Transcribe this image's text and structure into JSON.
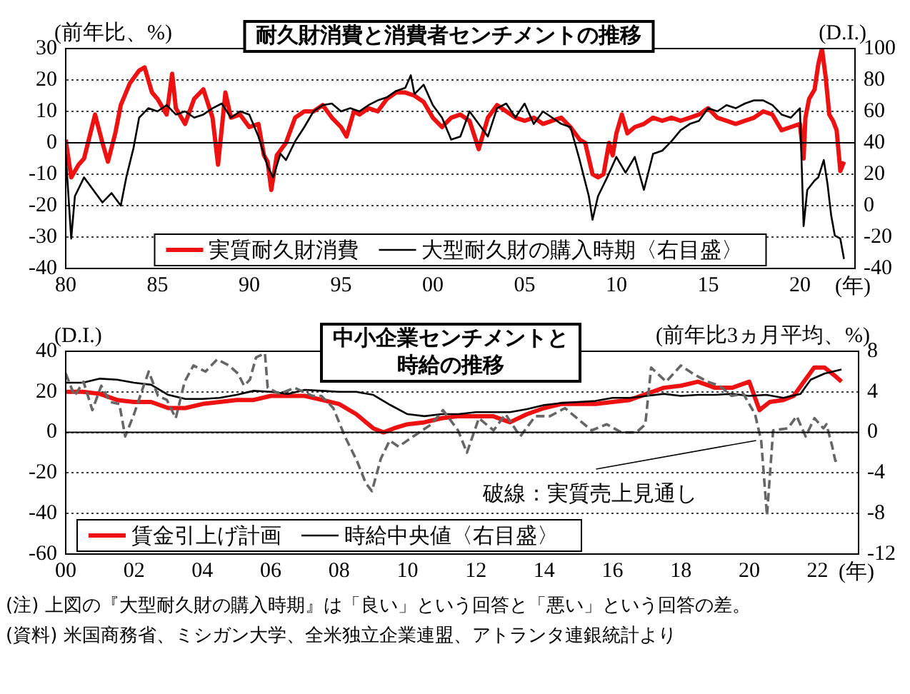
{
  "chart_data": [
    {
      "type": "line",
      "title": "耐久財消費と消費者センチメントの推移",
      "xlabel": "(年)",
      "ylabel": "(前年比、%)",
      "y2label": "(D.I.)",
      "xlim": [
        1980,
        2023
      ],
      "xticks": [
        {
          "value": 1980,
          "label": "80"
        },
        {
          "value": 1985,
          "label": "85"
        },
        {
          "value": 1990,
          "label": "90"
        },
        {
          "value": 1995,
          "label": "95"
        },
        {
          "value": 2000,
          "label": "00"
        },
        {
          "value": 2005,
          "label": "05"
        },
        {
          "value": 2010,
          "label": "10"
        },
        {
          "value": 2015,
          "label": "15"
        },
        {
          "value": 2020,
          "label": "20"
        }
      ],
      "ylim": [
        -40,
        30
      ],
      "yticks": [
        -40,
        -30,
        -20,
        -10,
        0,
        10,
        20,
        30
      ],
      "y2lim": [
        -40,
        100
      ],
      "y2ticks": [
        -40,
        -20,
        0,
        20,
        40,
        60,
        80,
        100
      ],
      "grid": "y",
      "legend": "bottom",
      "marker": "none",
      "series": [
        {
          "name": "実質耐久財消費",
          "color": "#ee1111",
          "x": [
            1980,
            1980.3,
            1980.7,
            1981,
            1981.3,
            1981.6,
            1982,
            1982.3,
            1982.7,
            1983,
            1983.5,
            1984,
            1984.3,
            1984.7,
            1985,
            1985.5,
            1985.8,
            1986,
            1986.5,
            1987,
            1987.5,
            1988,
            1988.3,
            1988.7,
            1989,
            1989.5,
            1990,
            1990.5,
            1990.8,
            1991,
            1991.2,
            1991.5,
            1992,
            1992.5,
            1993,
            1993.5,
            1994,
            1994.5,
            1995,
            1995.3,
            1995.7,
            1996,
            1996.5,
            1997,
            1997.5,
            1998,
            1998.5,
            1999,
            1999.5,
            2000,
            2000.5,
            2001,
            2001.5,
            2002,
            2002.5,
            2003,
            2003.5,
            2004,
            2004.5,
            2005,
            2005.5,
            2006,
            2006.5,
            2007,
            2007.5,
            2008,
            2008.3,
            2008.7,
            2009,
            2009.3,
            2009.6,
            2009.8,
            2010,
            2010.3,
            2010.6,
            2011,
            2011.5,
            2012,
            2012.5,
            2013,
            2013.5,
            2014,
            2014.5,
            2015,
            2015.5,
            2016,
            2016.5,
            2017,
            2017.5,
            2018,
            2018.5,
            2019,
            2019.5,
            2020,
            2020.2,
            2020.3,
            2020.5,
            2020.8,
            2021,
            2021.2,
            2021.4,
            2021.6,
            2021.8,
            2022,
            2022.2,
            2022.4
          ],
          "values": [
            1,
            -11,
            -7,
            -5,
            2,
            9,
            0,
            -6,
            3,
            12,
            19,
            23,
            24,
            16,
            14,
            9,
            22,
            11,
            6,
            14,
            17,
            8,
            -7,
            16,
            8,
            9,
            5,
            6,
            -4,
            -6,
            -15,
            -4,
            0,
            8,
            10,
            10,
            12,
            8,
            5,
            2,
            10,
            9,
            11,
            10,
            14,
            16,
            16,
            15,
            13,
            8,
            5,
            8,
            9,
            7,
            -2,
            8,
            12,
            10,
            8,
            7,
            8,
            6,
            7,
            8,
            5,
            1,
            0,
            -10,
            -11,
            -10,
            0,
            -4,
            3,
            9,
            3,
            5,
            6,
            8,
            7,
            8,
            7,
            8,
            9,
            11,
            8,
            7,
            6,
            7,
            8,
            10,
            9,
            4,
            5,
            6,
            -5,
            8,
            14,
            17,
            25,
            30,
            21,
            9,
            7,
            4,
            -9,
            -6
          ]
        },
        {
          "name": "大型耐久財の購入時期〈右目盛〉",
          "color": "#000000",
          "axis": "y2",
          "x": [
            1980,
            1980.3,
            1980.5,
            1981,
            1981.5,
            1982,
            1982.5,
            1983,
            1983.3,
            1983.7,
            1984,
            1984.5,
            1985,
            1985.5,
            1986,
            1986.5,
            1987,
            1987.5,
            1988,
            1988.5,
            1989,
            1989.5,
            1990,
            1990.5,
            1991,
            1991.3,
            1991.7,
            1992,
            1992.5,
            1993,
            1993.5,
            1994,
            1994.5,
            1995,
            1995.5,
            1996,
            1996.5,
            1997,
            1997.5,
            1998,
            1998.5,
            1998.8,
            1999,
            1999.5,
            2000,
            2000.5,
            2001,
            2001.5,
            2002,
            2002.5,
            2003,
            2003.5,
            2004,
            2004.5,
            2005,
            2005.5,
            2006,
            2006.5,
            2007,
            2007.5,
            2008,
            2008.5,
            2008.7,
            2009,
            2009.5,
            2010,
            2010.5,
            2011,
            2011.5,
            2012,
            2012.5,
            2013,
            2013.5,
            2014,
            2014.5,
            2015,
            2015.5,
            2016,
            2016.5,
            2017,
            2017.5,
            2018,
            2018.5,
            2019,
            2019.5,
            2020,
            2020.2,
            2020.4,
            2020.8,
            2021,
            2021.3,
            2021.5,
            2021.7,
            2021.9,
            2022.2,
            2022.4
          ],
          "values": [
            33,
            -21,
            6,
            18,
            10,
            2,
            8,
            0,
            18,
            37,
            56,
            62,
            60,
            64,
            58,
            60,
            56,
            58,
            62,
            65,
            56,
            60,
            58,
            44,
            25,
            18,
            33,
            29,
            41,
            50,
            60,
            64,
            65,
            60,
            62,
            60,
            64,
            67,
            69,
            73,
            75,
            83,
            71,
            77,
            64,
            56,
            42,
            44,
            60,
            52,
            44,
            62,
            65,
            56,
            65,
            52,
            60,
            56,
            52,
            50,
            29,
            6,
            -9,
            6,
            18,
            31,
            21,
            31,
            10,
            33,
            35,
            41,
            48,
            52,
            54,
            62,
            60,
            64,
            62,
            65,
            67,
            67,
            64,
            58,
            56,
            62,
            -13,
            10,
            16,
            18,
            29,
            14,
            -6,
            -19,
            -21,
            -34
          ]
        }
      ]
    },
    {
      "type": "line",
      "title": "中小企業センチメントと時給の推移",
      "xlabel": "(年)",
      "ylabel": "(D.I.)",
      "y2label": "(前年比3ヵ月平均、%)",
      "xlim": [
        2000,
        2023.2
      ],
      "xticks": [
        {
          "value": 2000,
          "label": "00"
        },
        {
          "value": 2002,
          "label": "02"
        },
        {
          "value": 2004,
          "label": "04"
        },
        {
          "value": 2006,
          "label": "06"
        },
        {
          "value": 2008,
          "label": "08"
        },
        {
          "value": 2010,
          "label": "10"
        },
        {
          "value": 2012,
          "label": "12"
        },
        {
          "value": 2014,
          "label": "14"
        },
        {
          "value": 2016,
          "label": "16"
        },
        {
          "value": 2018,
          "label": "18"
        },
        {
          "value": 2020,
          "label": "20"
        },
        {
          "value": 2022,
          "label": "22"
        }
      ],
      "ylim": [
        -60,
        40
      ],
      "yticks": [
        -60,
        -40,
        -20,
        0,
        20,
        40
      ],
      "y2lim": [
        -12,
        8
      ],
      "y2ticks": [
        -12,
        -8,
        -4,
        0,
        4,
        8
      ],
      "grid": "y",
      "legend": "bottom left",
      "marker": "none",
      "annotations": [
        {
          "text": "破線：実質売上見通し",
          "x": 2020.2,
          "y": -4
        },
        "(注) 上図の『大型耐久財の購入時期』は「良い」という回答と「悪い」という回答の差。",
        "(資料) 米国商務省、ミシガン大学、全米独立企業連盟、アトランタ連銀統計より"
      ],
      "series": [
        {
          "name": "賃金引上げ計画",
          "color": "#ee1111",
          "x": [
            2000,
            2000.5,
            2001,
            2001.5,
            2002,
            2002.5,
            2003,
            2003.5,
            2004,
            2004.5,
            2005,
            2005.5,
            2006,
            2006.5,
            2007,
            2007.5,
            2008,
            2008.5,
            2009,
            2009.3,
            2009.6,
            2010,
            2010.5,
            2011,
            2011.5,
            2012,
            2012.5,
            2013,
            2013.5,
            2014,
            2014.5,
            2015,
            2015.5,
            2016,
            2016.5,
            2017,
            2017.5,
            2018,
            2018.5,
            2019,
            2019.5,
            2020,
            2020.3,
            2020.6,
            2021,
            2021.3,
            2021.6,
            2021.9,
            2022.2,
            2022.5,
            2022.7
          ],
          "values": [
            20,
            20,
            19,
            16,
            15,
            15,
            12,
            12,
            14,
            15,
            16,
            16,
            18,
            18,
            18,
            16,
            14,
            9,
            2,
            0,
            2,
            4,
            5,
            7,
            8,
            8,
            8,
            5,
            9,
            12,
            14,
            14,
            14,
            15,
            16,
            19,
            22,
            23,
            25,
            22,
            22,
            25,
            11,
            15,
            16,
            18,
            25,
            32,
            32,
            28,
            25
          ]
        },
        {
          "name": "時給中央値〈右目盛〉",
          "color": "#000000",
          "axis": "y2",
          "x": [
            2000,
            2000.5,
            2001,
            2001.5,
            2002,
            2002.5,
            2003,
            2003.5,
            2004,
            2004.5,
            2005,
            2005.5,
            2006,
            2006.5,
            2007,
            2007.5,
            2008,
            2008.5,
            2009,
            2009.5,
            2010,
            2010.5,
            2011,
            2011.5,
            2012,
            2012.5,
            2013,
            2013.5,
            2014,
            2014.5,
            2015,
            2015.5,
            2016,
            2016.5,
            2017,
            2017.5,
            2018,
            2018.5,
            2019,
            2019.5,
            2020,
            2020.5,
            2021,
            2021.5,
            2021.8,
            2022.2,
            2022.7
          ],
          "values": [
            4.9,
            4.9,
            5.3,
            5.2,
            4.9,
            4.7,
            3.7,
            3.3,
            3.3,
            3.4,
            3.7,
            4.1,
            4.0,
            3.8,
            4.2,
            4.1,
            4.0,
            4.0,
            3.7,
            2.7,
            1.8,
            1.6,
            1.8,
            1.8,
            2.0,
            2.0,
            2.0,
            2.3,
            2.7,
            2.9,
            3.0,
            3.1,
            3.4,
            3.4,
            3.6,
            3.8,
            3.6,
            3.7,
            3.7,
            3.8,
            3.6,
            3.7,
            3.4,
            3.8,
            5.2,
            5.8,
            6.2
          ]
        },
        {
          "color": "#666666",
          "line_style": "dashed",
          "x": [
            2000,
            2000.26,
            2000.52,
            2000.78,
            2001.04,
            2001.3,
            2001.57,
            2001.74,
            2002,
            2002.26,
            2002.43,
            2002.7,
            2002.96,
            2003.22,
            2003.48,
            2003.74,
            2004.09,
            2004.43,
            2004.78,
            2005.04,
            2005.22,
            2005.39,
            2005.57,
            2005.83,
            2005.91,
            2006.26,
            2006.7,
            2007.22,
            2007.48,
            2007.83,
            2008.17,
            2008.52,
            2008.78,
            2008.96,
            2009.22,
            2009.48,
            2009.74,
            2010.17,
            2010.7,
            2011.04,
            2011.48,
            2011.74,
            2012.09,
            2012.52,
            2012.87,
            2013.3,
            2013.74,
            2014.17,
            2014.61,
            2014.96,
            2015.39,
            2015.83,
            2016.26,
            2016.7,
            2016.96,
            2017.13,
            2017.57,
            2018,
            2018.35,
            2018.78,
            2019.13,
            2019.48,
            2019.83,
            2020.17,
            2020.35,
            2020.52,
            2020.7,
            2021.13,
            2021.39,
            2021.65,
            2021.91,
            2022.17,
            2022.26,
            2022.43,
            2022.52,
            2022.64
          ],
          "values": [
            29,
            18,
            25,
            11,
            23,
            15,
            14,
            -2,
            9,
            22,
            30,
            18,
            16,
            7,
            25,
            33,
            30,
            36,
            33,
            29,
            23,
            26,
            37,
            39,
            22,
            19,
            22,
            18,
            18,
            12,
            -2,
            -14,
            -25,
            -29,
            -13,
            -4,
            -7,
            -2,
            4,
            11,
            1,
            -10,
            7,
            1,
            9,
            -2,
            8,
            8,
            12,
            7,
            1,
            4,
            0,
            0,
            4,
            32,
            25,
            33,
            29,
            25,
            23,
            18,
            19,
            9,
            -4,
            -41,
            1,
            2,
            8,
            -2,
            7,
            2,
            4,
            -7,
            -14,
            -13
          ]
        }
      ]
    }
  ]
}
